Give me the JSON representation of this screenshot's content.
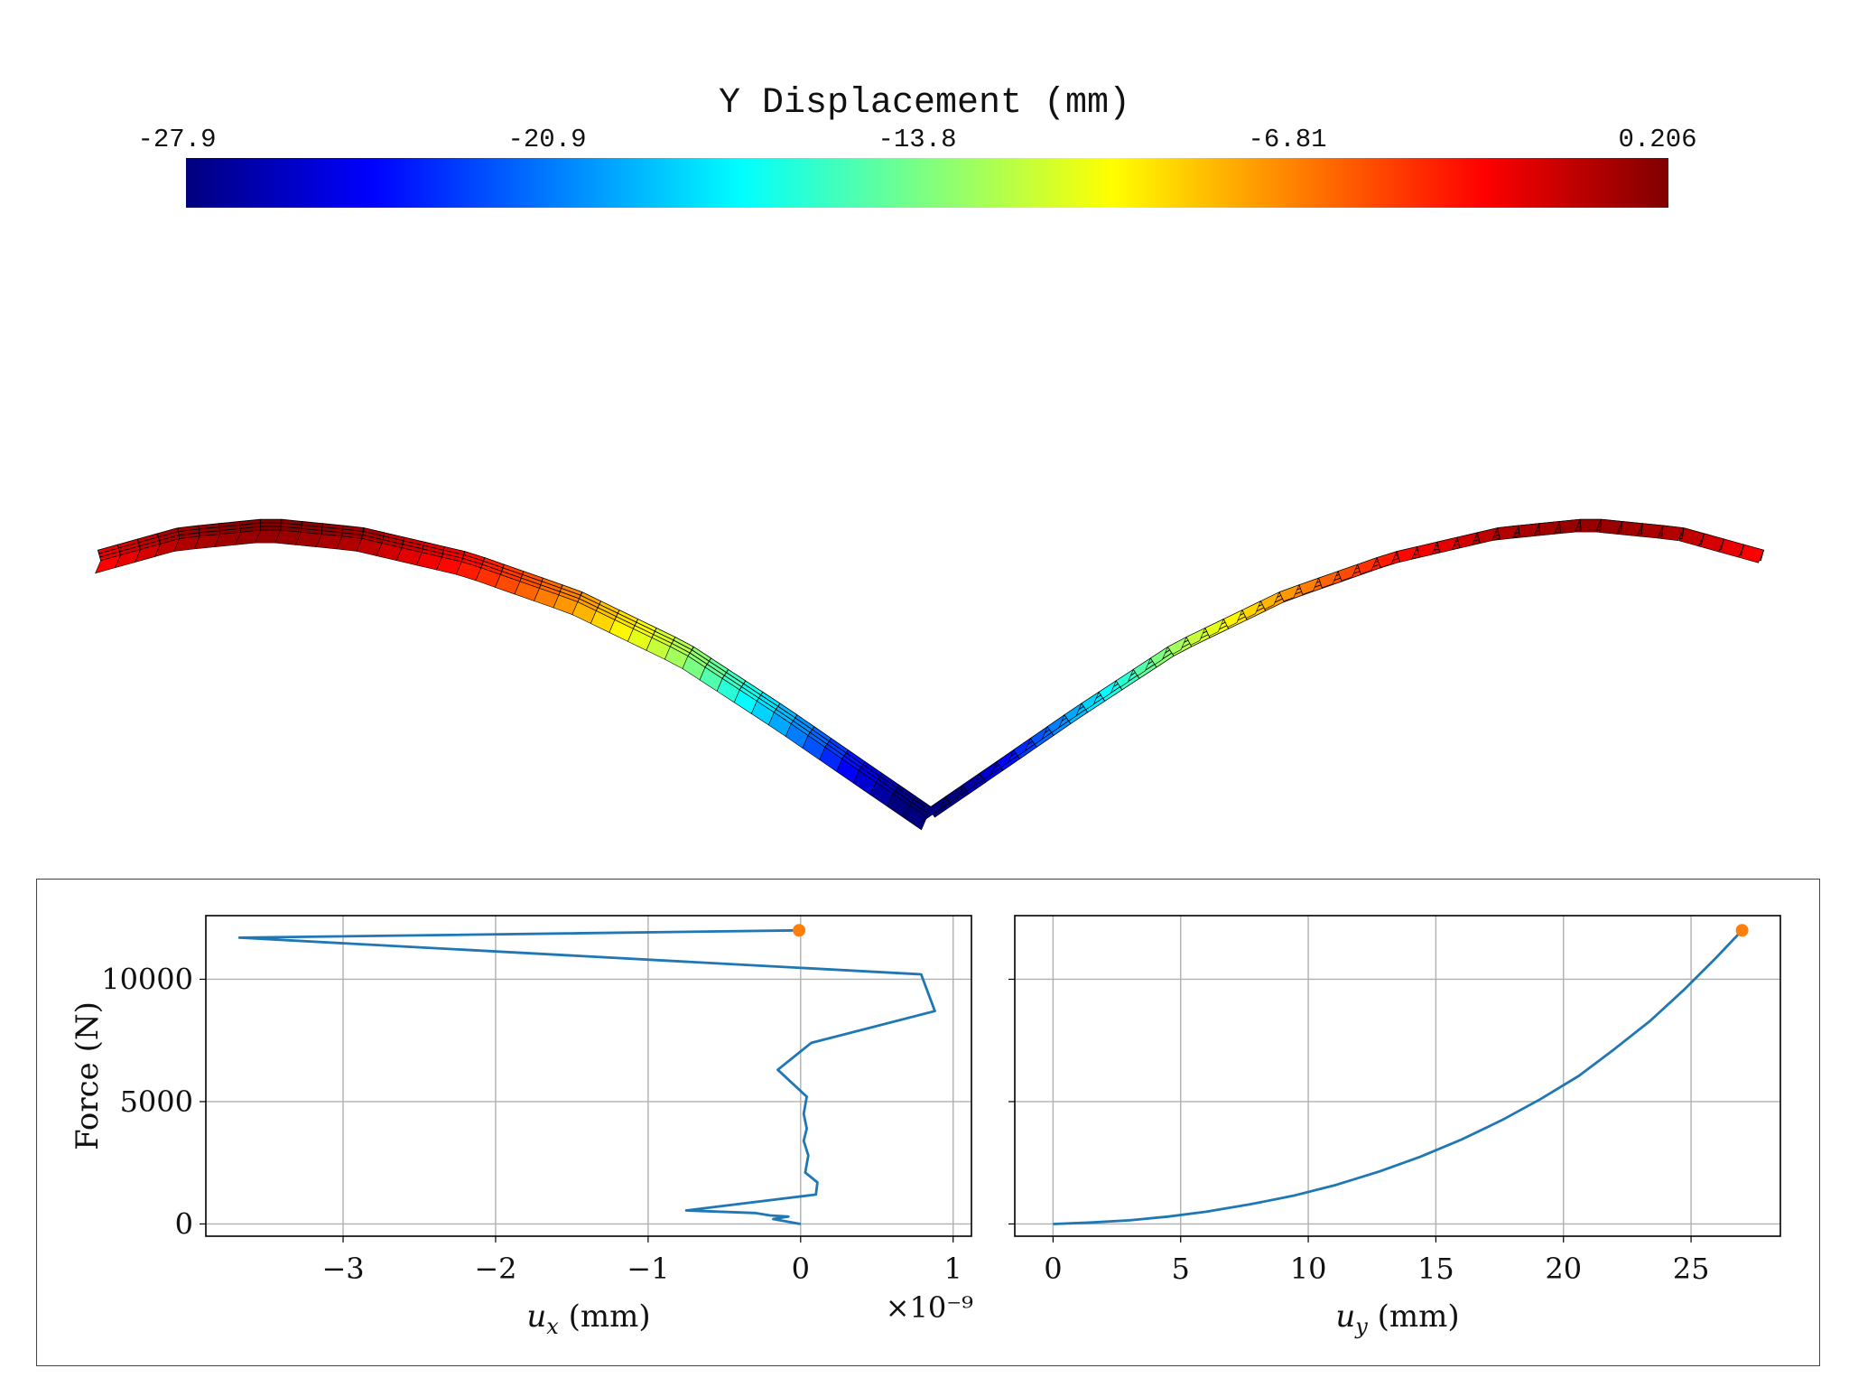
{
  "colorbar": {
    "title": "Y Displacement (mm)",
    "ticks": [
      "-27.9",
      "-20.9",
      "-13.8",
      "-6.81",
      "0.206"
    ],
    "min": -27.9,
    "max": 0.206,
    "colormap_stops": [
      "#00007f",
      "#0000ff",
      "#007fff",
      "#00ffff",
      "#7fff7f",
      "#ffff00",
      "#ff7f00",
      "#ff0000",
      "#7f0000"
    ]
  },
  "chart_data": [
    {
      "type": "line",
      "xlabel": "u_x (mm)",
      "ylabel": "Force (N)",
      "x_multiplier_label": "×10⁻⁹",
      "xlim": [
        -3.9,
        1.12
      ],
      "ylim": [
        -500,
        12600
      ],
      "xticks": [
        -3,
        -2,
        -1,
        0,
        1
      ],
      "xtick_labels": [
        "−3",
        "−2",
        "−1",
        "0",
        "1"
      ],
      "yticks": [
        0,
        5000,
        10000
      ],
      "ytick_labels": [
        "0",
        "5000",
        "10000"
      ],
      "grid": true,
      "series": [
        {
          "color": "#1f77b4",
          "x": [
            0.0,
            -0.18,
            -0.08,
            -0.2,
            -0.3,
            -0.75,
            0.1,
            0.11,
            0.03,
            0.05,
            0.02,
            0.04,
            0.02,
            0.04,
            -0.15,
            0.07,
            0.88,
            0.79,
            -3.68,
            -0.01
          ],
          "y": [
            0,
            200,
            300,
            350,
            450,
            550,
            1200,
            1700,
            2100,
            2800,
            3400,
            3900,
            4500,
            5200,
            6300,
            7400,
            8700,
            10200,
            11700,
            12000
          ]
        }
      ],
      "highlight_point": {
        "x": -0.01,
        "y": 12000,
        "color": "#ff7f0e"
      }
    },
    {
      "type": "line",
      "xlabel": "u_y (mm)",
      "ylabel": "",
      "xlim": [
        -1.5,
        28.5
      ],
      "ylim": [
        -500,
        12600
      ],
      "xticks": [
        0,
        5,
        10,
        15,
        20,
        25
      ],
      "xtick_labels": [
        "0",
        "5",
        "10",
        "15",
        "20",
        "25"
      ],
      "yticks": [
        0,
        5000,
        10000
      ],
      "grid": true,
      "series": [
        {
          "color": "#1f77b4",
          "x": [
            0,
            1.5,
            3.0,
            4.5,
            6.0,
            7.7,
            9.4,
            11.1,
            12.8,
            14.4,
            16.0,
            17.6,
            19.1,
            20.6,
            22.0,
            23.4,
            24.7,
            26.0,
            27.0
          ],
          "y": [
            0,
            60,
            150,
            300,
            500,
            800,
            1150,
            1600,
            2150,
            2750,
            3450,
            4250,
            5100,
            6050,
            7150,
            8300,
            9550,
            10900,
            12000
          ]
        }
      ],
      "highlight_point": {
        "x": 27.0,
        "y": 12000,
        "color": "#ff7f0e"
      }
    }
  ]
}
